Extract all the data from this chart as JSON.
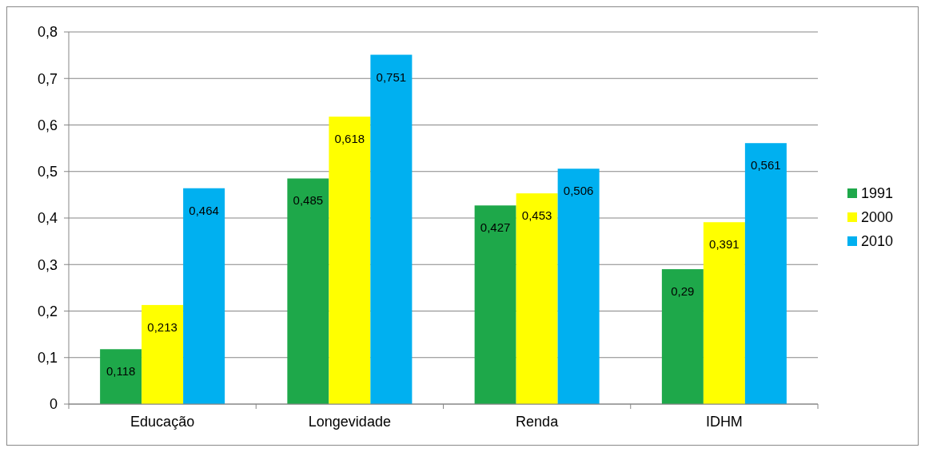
{
  "chart_data": {
    "type": "bar",
    "categories": [
      "Educação",
      "Longevidade",
      "Renda",
      "IDHM"
    ],
    "series": [
      {
        "name": "1991",
        "color": "#1ea84a",
        "values": [
          0.118,
          0.485,
          0.427,
          0.29
        ],
        "value_labels": [
          "0,118",
          "0,485",
          "0,427",
          "0,29"
        ]
      },
      {
        "name": "2000",
        "color": "#ffff00",
        "values": [
          0.213,
          0.618,
          0.453,
          0.391
        ],
        "value_labels": [
          "0,213",
          "0,618",
          "0,453",
          "0,391"
        ]
      },
      {
        "name": "2010",
        "color": "#00b0f0",
        "values": [
          0.464,
          0.751,
          0.506,
          0.561
        ],
        "value_labels": [
          "0,464",
          "0,751",
          "0,506",
          "0,561"
        ]
      }
    ],
    "ylim": [
      0,
      0.8
    ],
    "yticks": [
      {
        "value": 0,
        "label": "0"
      },
      {
        "value": 0.1,
        "label": "0,1"
      },
      {
        "value": 0.2,
        "label": "0,2"
      },
      {
        "value": 0.3,
        "label": "0,3"
      },
      {
        "value": 0.4,
        "label": "0,4"
      },
      {
        "value": 0.5,
        "label": "0,5"
      },
      {
        "value": 0.6,
        "label": "0,6"
      },
      {
        "value": 0.7,
        "label": "0,7"
      },
      {
        "value": 0.8,
        "label": "0,8"
      }
    ],
    "grid": "y",
    "legend": "right"
  }
}
